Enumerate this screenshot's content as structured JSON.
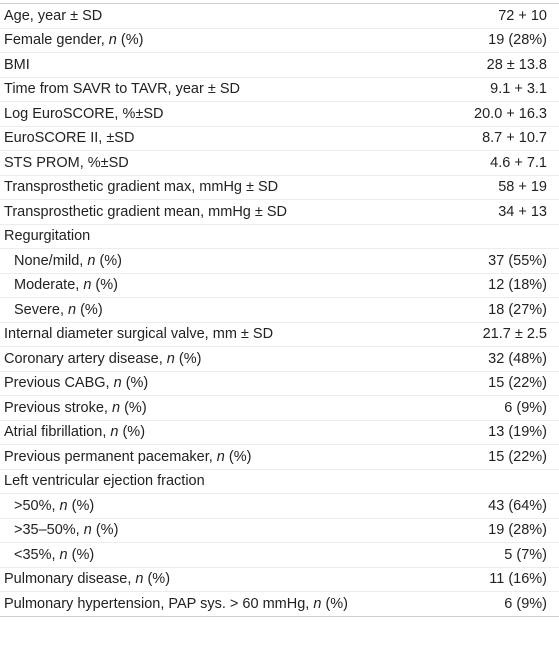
{
  "table": {
    "rows": [
      {
        "label": [
          "Age, year ± SD"
        ],
        "value": "72 + 10"
      },
      {
        "label": [
          "Female gender, ",
          "n",
          " (%)"
        ],
        "value": "19 (28%)"
      },
      {
        "label": [
          "BMI"
        ],
        "value": "28 ± 13.8"
      },
      {
        "label": [
          "Time from SAVR to TAVR, year ± SD"
        ],
        "value": "9.1 + 3.1"
      },
      {
        "label": [
          "Log EuroSCORE, %±SD"
        ],
        "value": "20.0 + 16.3"
      },
      {
        "label": [
          "EuroSCORE II, ±SD"
        ],
        "value": "8.7 + 10.7"
      },
      {
        "label": [
          "STS PROM, %±SD"
        ],
        "value": "4.6 + 7.1"
      },
      {
        "label": [
          "Transprosthetic gradient max, mmHg ± SD"
        ],
        "value": "58 + 19"
      },
      {
        "label": [
          "Transprosthetic gradient mean, mmHg ± SD"
        ],
        "value": "34 + 13"
      },
      {
        "label": [
          "Regurgitation"
        ],
        "subrows": [
          {
            "label": [
              "None/mild, ",
              "n",
              " (%)"
            ],
            "value": "37 (55%)"
          },
          {
            "label": [
              "Moderate, ",
              "n",
              " (%)"
            ],
            "value": "12 (18%)"
          },
          {
            "label": [
              "Severe, ",
              "n",
              " (%)"
            ],
            "value": "18 (27%)"
          }
        ]
      },
      {
        "label": [
          "Internal diameter surgical valve, mm ± SD"
        ],
        "value": "21.7 ± 2.5"
      },
      {
        "label": [
          "Coronary artery disease, ",
          "n",
          " (%)"
        ],
        "value": "32 (48%)"
      },
      {
        "label": [
          "Previous CABG, ",
          "n",
          " (%)"
        ],
        "value": "15 (22%)"
      },
      {
        "label": [
          "Previous stroke, ",
          "n",
          " (%)"
        ],
        "value": "6 (9%)"
      },
      {
        "label": [
          "Atrial fibrillation, ",
          "n",
          " (%)"
        ],
        "value": "13 (19%)"
      },
      {
        "label": [
          "Previous permanent pacemaker, ",
          "n",
          " (%)"
        ],
        "value": "15 (22%)"
      },
      {
        "label": [
          "Left ventricular ejection fraction"
        ],
        "subrows": [
          {
            "label": [
              ">50%, ",
              "n",
              " (%)"
            ],
            "value": "43 (64%)"
          },
          {
            "label": [
              ">35–50%, ",
              "n",
              " (%)"
            ],
            "value": "19 (28%)"
          },
          {
            "label": [
              "<35%, ",
              "n",
              " (%)"
            ],
            "value": "5 (7%)"
          }
        ]
      },
      {
        "label": [
          "Pulmonary disease, ",
          "n",
          " (%)"
        ],
        "value": "11 (16%)"
      },
      {
        "label": [
          "Pulmonary hypertension, PAP sys. > 60 mmHg, ",
          "n",
          " (%)"
        ],
        "value": "6 (9%)"
      }
    ]
  }
}
